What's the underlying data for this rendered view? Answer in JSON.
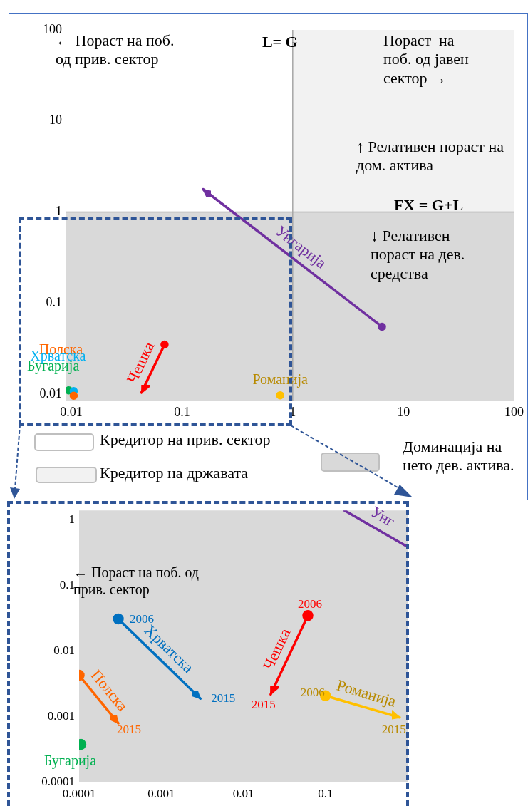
{
  "chart_data": [
    {
      "type": "line",
      "log": "xy",
      "xlim": [
        0.009,
        100
      ],
      "ylim": [
        0.0085,
        100
      ],
      "xticks": [
        0.01,
        0.1,
        1,
        10,
        100
      ],
      "yticks": [
        0.01,
        0.1,
        1,
        10,
        100
      ],
      "legend": "bottom",
      "ref_lines": [
        {
          "axis": "x",
          "value": 1,
          "label": "L= G",
          "color": "#a6a6a6"
        },
        {
          "axis": "y",
          "value": 1,
          "label": "FX = G+L",
          "color": "#a6a6a6"
        }
      ],
      "bands": [
        {
          "axis": "x",
          "from": 1,
          "to": 100,
          "label": "Кредитор на државата",
          "color": "#f2f2f2"
        },
        {
          "axis": "y",
          "from": 0.0085,
          "to": 1,
          "label": "Доминација на нето дев. актива.",
          "color": "#d9d9d9"
        }
      ],
      "annotations": [
        "← Пораст на поб. од прив. сектор",
        "Пораст  на поб. од јавен сектор →",
        "↑ Релативен пораст на дом. актива",
        "↓ Релативен пораст на дев. средства",
        "Кредитор на прив. сектор"
      ],
      "series": [
        {
          "name": "Полска",
          "color": "#ff6600",
          "type": "scatter",
          "marker": "circle",
          "x": [
            0.0105
          ],
          "values": [
            0.0096
          ]
        },
        {
          "name": "Хрватска",
          "color": "#00b0f0",
          "type": "scatter",
          "marker": "circle",
          "x": [
            0.0105
          ],
          "values": [
            0.0108
          ]
        },
        {
          "name": "Бугарија",
          "color": "#00b050",
          "type": "scatter",
          "marker": "circle",
          "x": [
            0.0095
          ],
          "values": [
            0.011
          ]
        },
        {
          "name": "Чешка",
          "color": "#ff0000",
          "type": "line",
          "marker": "circle",
          "x": [
            0.0695,
            0.043
          ],
          "values": [
            0.035,
            0.0104
          ]
        },
        {
          "name": "Романија",
          "color": "#ffc000",
          "type": "scatter",
          "marker": "circle",
          "x": [
            0.77
          ],
          "values": [
            0.0097
          ]
        },
        {
          "name": "Унгарија",
          "color": "#7030a0",
          "type": "line",
          "marker": "circle",
          "x": [
            6.4,
            0.155
          ],
          "values": [
            0.055,
            1.78
          ]
        }
      ]
    },
    {
      "type": "line",
      "log": "xy",
      "xlim": [
        0.0001,
        1
      ],
      "ylim": [
        0.0001,
        1.4
      ],
      "xticks": [
        0.0001,
        0.001,
        0.01,
        0.1
      ],
      "yticks": [
        0.0001,
        0.001,
        0.01,
        0.1,
        1
      ],
      "bands": [
        {
          "axis": "y",
          "from": 0.0001,
          "to": 1.4,
          "color": "#d9d9d9"
        }
      ],
      "annotations": [
        "← Пораст на поб. од прив. сектор",
        {
          "text": "2015",
          "x": 0.0003,
          "y": 0.0008
        },
        {
          "text": "2006",
          "x": 0.0003,
          "y": 0.031
        },
        {
          "text": "2015",
          "x": 0.003,
          "y": 0.0019
        },
        {
          "text": "2006",
          "x": 0.061,
          "y": 0.035
        },
        {
          "text": "2015",
          "x": 0.0215,
          "y": 0.0022
        },
        {
          "text": "2006",
          "x": 0.1,
          "y": 0.0021
        },
        {
          "text": "2015",
          "x": 0.8,
          "y": 0.00098
        }
      ],
      "series": [
        {
          "name": "Полска",
          "color": "#ff6600",
          "type": "line",
          "marker": "circle",
          "x": [
            0.0001,
            0.0003
          ],
          "values": [
            0.0043,
            0.0008
          ]
        },
        {
          "name": "Хрватска",
          "color": "#0070c0",
          "type": "line",
          "marker": "circle",
          "x": [
            0.0003,
            0.003
          ],
          "values": [
            0.031,
            0.0019
          ]
        },
        {
          "name": "Бугарија",
          "color": "#00b050",
          "type": "scatter",
          "marker": "circle",
          "x": [
            0.000105
          ],
          "values": [
            0.00038
          ]
        },
        {
          "name": "Чешка",
          "color": "#ff0000",
          "type": "line",
          "marker": "circle",
          "x": [
            0.061,
            0.0215
          ],
          "values": [
            0.035,
            0.0022
          ]
        },
        {
          "name": "Романија",
          "color": "#ffc000",
          "type": "line",
          "marker": "circle",
          "x": [
            0.1,
            0.8
          ],
          "values": [
            0.0021,
            0.00098
          ]
        },
        {
          "name": "Унг",
          "color": "#7030a0",
          "type": "line",
          "x": [
            1,
            0.17
          ],
          "values": [
            0.39,
            1.4
          ]
        }
      ]
    }
  ]
}
